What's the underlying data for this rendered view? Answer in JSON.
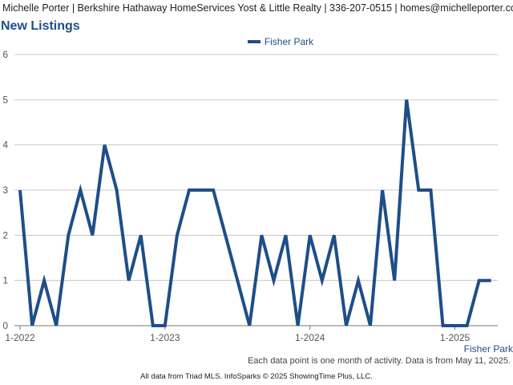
{
  "header": {
    "text": "Michelle Porter | Berkshire Hathaway HomeServices Yost & Little Realty | 336-207-0515 | homes@michelleporter.com"
  },
  "page_title": "New Listings",
  "footnote": "Each data point is one month of activity. Data is from May 11, 2025.",
  "source": "All data from Triad MLS. InfoSparks © 2025 ShowingTime Plus, LLC.",
  "colors": {
    "series": "#1f4e87",
    "grid": "#c8c8c8",
    "axis_text": "#555555"
  },
  "chart_data": {
    "type": "line",
    "title": "New Listings",
    "xlabel": "",
    "ylabel": "",
    "ylim": [
      0,
      6
    ],
    "yticks": [
      "0",
      "1",
      "2",
      "3",
      "4",
      "5",
      "6"
    ],
    "xticks": [
      {
        "label": "1-2022",
        "month_index": 0
      },
      {
        "label": "1-2023",
        "month_index": 12
      },
      {
        "label": "1-2024",
        "month_index": 24
      },
      {
        "label": "1-2025",
        "month_index": 36
      }
    ],
    "grid": true,
    "legend": "top-center",
    "series_end_label": "Fisher Park",
    "series": [
      {
        "name": "Fisher Park",
        "x": [
          "1-2022",
          "2-2022",
          "3-2022",
          "4-2022",
          "5-2022",
          "6-2022",
          "7-2022",
          "8-2022",
          "9-2022",
          "10-2022",
          "11-2022",
          "12-2022",
          "1-2023",
          "2-2023",
          "3-2023",
          "4-2023",
          "5-2023",
          "6-2023",
          "7-2023",
          "8-2023",
          "9-2023",
          "10-2023",
          "11-2023",
          "12-2023",
          "1-2024",
          "2-2024",
          "3-2024",
          "4-2024",
          "5-2024",
          "6-2024",
          "7-2024",
          "8-2024",
          "9-2024",
          "10-2024",
          "11-2024",
          "12-2024",
          "1-2025",
          "2-2025",
          "3-2025",
          "4-2025"
        ],
        "values": [
          3,
          0,
          1,
          0,
          2,
          3,
          2,
          4,
          3,
          1,
          2,
          0,
          0,
          2,
          3,
          3,
          3,
          2,
          1,
          0,
          2,
          1,
          2,
          0,
          2,
          1,
          2,
          0,
          1,
          0,
          3,
          1,
          5,
          3,
          3,
          0,
          0,
          0,
          1,
          1
        ]
      }
    ]
  }
}
